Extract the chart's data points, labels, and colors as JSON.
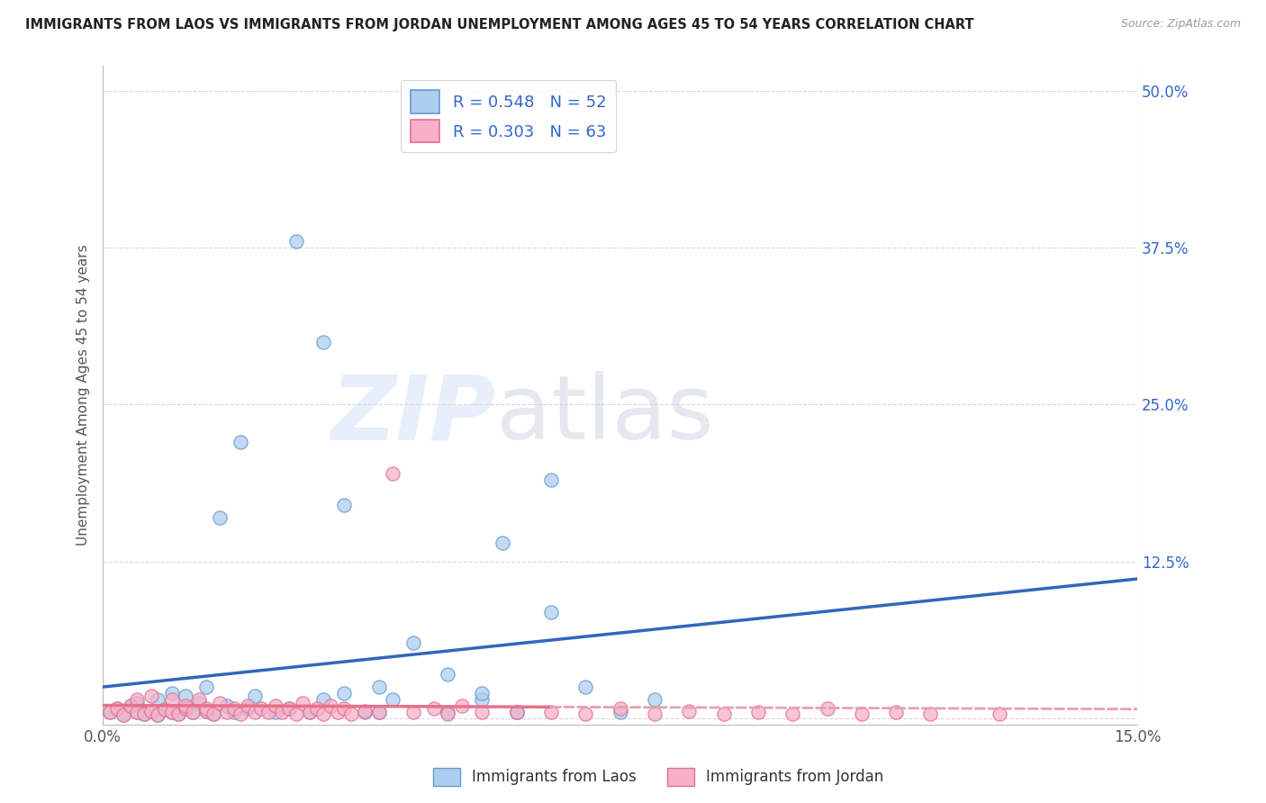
{
  "title": "IMMIGRANTS FROM LAOS VS IMMIGRANTS FROM JORDAN UNEMPLOYMENT AMONG AGES 45 TO 54 YEARS CORRELATION CHART",
  "source": "Source: ZipAtlas.com",
  "ylabel": "Unemployment Among Ages 45 to 54 years",
  "xlim": [
    0.0,
    0.15
  ],
  "ylim": [
    -0.005,
    0.52
  ],
  "ytick_positions": [
    0.0,
    0.125,
    0.25,
    0.375,
    0.5
  ],
  "ytick_labels": [
    "",
    "12.5%",
    "25.0%",
    "37.5%",
    "50.0%"
  ],
  "laos_color": "#aecef0",
  "jordan_color": "#f8b0c8",
  "laos_edge_color": "#6699cc",
  "jordan_edge_color": "#e07090",
  "laos_line_color": "#3366bb",
  "jordan_line_solid_color": "#e8708a",
  "jordan_line_dashed_color": "#e8a0b0",
  "laos_R": 0.548,
  "laos_N": 52,
  "jordan_R": 0.303,
  "jordan_N": 63,
  "laos_x": [
    0.001,
    0.002,
    0.003,
    0.004,
    0.005,
    0.005,
    0.006,
    0.007,
    0.008,
    0.008,
    0.009,
    0.01,
    0.01,
    0.011,
    0.012,
    0.012,
    0.013,
    0.014,
    0.015,
    0.015,
    0.016,
    0.017,
    0.018,
    0.019,
    0.02,
    0.021,
    0.022,
    0.025,
    0.027,
    0.03,
    0.032,
    0.035,
    0.038,
    0.04,
    0.042,
    0.045,
    0.05,
    0.055,
    0.058,
    0.06,
    0.065,
    0.07,
    0.075,
    0.08,
    0.035,
    0.04,
    0.05,
    0.055,
    0.06,
    0.065,
    0.028,
    0.032
  ],
  "laos_y": [
    0.005,
    0.008,
    0.003,
    0.01,
    0.005,
    0.012,
    0.004,
    0.006,
    0.003,
    0.015,
    0.007,
    0.005,
    0.02,
    0.004,
    0.008,
    0.018,
    0.005,
    0.012,
    0.006,
    0.025,
    0.004,
    0.16,
    0.01,
    0.005,
    0.22,
    0.008,
    0.018,
    0.005,
    0.008,
    0.005,
    0.015,
    0.02,
    0.005,
    0.025,
    0.015,
    0.06,
    0.035,
    0.015,
    0.14,
    0.005,
    0.085,
    0.025,
    0.005,
    0.015,
    0.17,
    0.005,
    0.005,
    0.02,
    0.005,
    0.19,
    0.38,
    0.3
  ],
  "jordan_x": [
    0.001,
    0.002,
    0.003,
    0.004,
    0.005,
    0.005,
    0.006,
    0.007,
    0.007,
    0.008,
    0.009,
    0.01,
    0.01,
    0.011,
    0.012,
    0.012,
    0.013,
    0.014,
    0.015,
    0.015,
    0.016,
    0.017,
    0.018,
    0.019,
    0.02,
    0.021,
    0.022,
    0.023,
    0.024,
    0.025,
    0.026,
    0.027,
    0.028,
    0.029,
    0.03,
    0.031,
    0.032,
    0.033,
    0.034,
    0.035,
    0.036,
    0.038,
    0.04,
    0.042,
    0.045,
    0.048,
    0.05,
    0.052,
    0.055,
    0.06,
    0.065,
    0.07,
    0.075,
    0.08,
    0.085,
    0.09,
    0.095,
    0.1,
    0.105,
    0.11,
    0.115,
    0.12,
    0.13
  ],
  "jordan_y": [
    0.005,
    0.008,
    0.003,
    0.01,
    0.005,
    0.015,
    0.004,
    0.006,
    0.018,
    0.003,
    0.007,
    0.005,
    0.015,
    0.004,
    0.008,
    0.01,
    0.005,
    0.015,
    0.006,
    0.008,
    0.004,
    0.012,
    0.005,
    0.008,
    0.004,
    0.01,
    0.005,
    0.008,
    0.005,
    0.01,
    0.005,
    0.008,
    0.004,
    0.012,
    0.005,
    0.008,
    0.004,
    0.01,
    0.005,
    0.008,
    0.004,
    0.006,
    0.005,
    0.195,
    0.005,
    0.008,
    0.004,
    0.01,
    0.005,
    0.005,
    0.005,
    0.004,
    0.008,
    0.004,
    0.006,
    0.004,
    0.005,
    0.004,
    0.008,
    0.004,
    0.005,
    0.004,
    0.004
  ]
}
